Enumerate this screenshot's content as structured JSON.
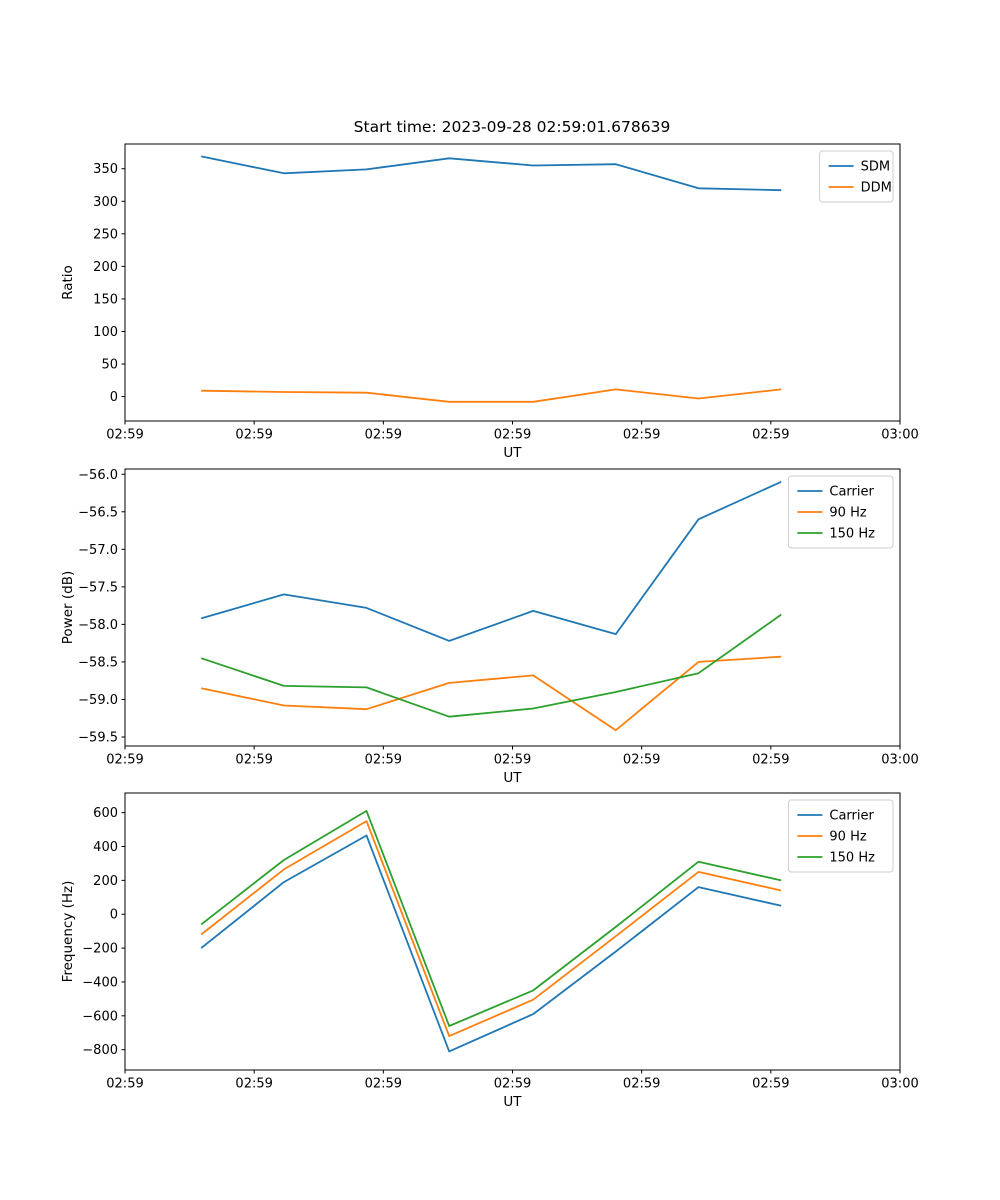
{
  "title": "Start time: 2023-09-28 02:59:01.678639",
  "chart_data": [
    {
      "id": "ratio",
      "type": "line",
      "title": "",
      "xlabel": "UT",
      "ylabel": "Ratio",
      "x": [
        5.9,
        12.3,
        18.7,
        25.1,
        31.6,
        38.0,
        44.4,
        50.8
      ],
      "x_unit": "seconds after 02:59:00 UT",
      "xlim": [
        0,
        60
      ],
      "xticks": [
        0,
        10,
        20,
        30,
        40,
        50,
        60
      ],
      "xtick_labels": [
        "02:59",
        "02:59",
        "02:59",
        "02:59",
        "02:59",
        "02:59",
        "03:00"
      ],
      "ylim": [
        -37.5,
        388
      ],
      "yticks": [
        0,
        50,
        100,
        150,
        200,
        250,
        300,
        350
      ],
      "ytick_labels": [
        "0",
        "50",
        "100",
        "150",
        "200",
        "250",
        "300",
        "350"
      ],
      "grid": false,
      "legend_position": "upper right",
      "series": [
        {
          "name": "SDM",
          "color": "#1f77b4",
          "values": [
            369,
            343,
            349,
            366,
            355,
            357,
            320,
            317
          ]
        },
        {
          "name": "DDM",
          "color": "#ff7f0e",
          "values": [
            9,
            7,
            6,
            -8,
            -8,
            11,
            -3,
            11
          ]
        }
      ]
    },
    {
      "id": "power",
      "type": "line",
      "title": "",
      "xlabel": "UT",
      "ylabel": "Power (dB)",
      "x": [
        5.9,
        12.3,
        18.7,
        25.1,
        31.6,
        38.0,
        44.4,
        50.8
      ],
      "x_unit": "seconds after 02:59:00 UT",
      "xlim": [
        0,
        60
      ],
      "xticks": [
        0,
        10,
        20,
        30,
        40,
        50,
        60
      ],
      "xtick_labels": [
        "02:59",
        "02:59",
        "02:59",
        "02:59",
        "02:59",
        "02:59",
        "03:00"
      ],
      "ylim": [
        -59.62,
        -55.93
      ],
      "yticks": [
        -59.5,
        -59.0,
        -58.5,
        -58.0,
        -57.5,
        -57.0,
        -56.5,
        -56.0
      ],
      "ytick_labels": [
        "−59.5",
        "−59.0",
        "−58.5",
        "−58.0",
        "−57.5",
        "−57.0",
        "−56.5",
        "−56.0"
      ],
      "grid": false,
      "legend_position": "upper right",
      "series": [
        {
          "name": "Carrier",
          "color": "#1f77b4",
          "values": [
            -57.92,
            -57.6,
            -57.78,
            -58.22,
            -57.82,
            -58.13,
            -56.6,
            -56.1
          ]
        },
        {
          "name": "90 Hz",
          "color": "#ff7f0e",
          "values": [
            -58.85,
            -59.08,
            -59.13,
            -58.78,
            -58.68,
            -59.41,
            -58.5,
            -58.43
          ]
        },
        {
          "name": "150 Hz",
          "color": "#2ca02c",
          "values": [
            -58.45,
            -58.82,
            -58.84,
            -59.23,
            -59.12,
            -58.9,
            -58.65,
            -57.87
          ]
        }
      ]
    },
    {
      "id": "frequency",
      "type": "line",
      "title": "",
      "xlabel": "UT",
      "ylabel": "Frequency (Hz)",
      "x": [
        5.9,
        12.3,
        18.7,
        25.1,
        31.6,
        38.0,
        44.4,
        50.8
      ],
      "x_unit": "seconds after 02:59:00 UT",
      "xlim": [
        0,
        60
      ],
      "xticks": [
        0,
        10,
        20,
        30,
        40,
        50,
        60
      ],
      "xtick_labels": [
        "02:59",
        "02:59",
        "02:59",
        "02:59",
        "02:59",
        "02:59",
        "03:00"
      ],
      "ylim": [
        -920,
        716
      ],
      "yticks": [
        -800,
        -600,
        -400,
        -200,
        0,
        200,
        400,
        600
      ],
      "ytick_labels": [
        "−800",
        "−600",
        "−400",
        "−200",
        "0",
        "200",
        "400",
        "600"
      ],
      "grid": false,
      "legend_position": "upper right",
      "series": [
        {
          "name": "Carrier",
          "color": "#1f77b4",
          "values": [
            -200,
            190,
            465,
            -810,
            -590,
            -220,
            160,
            50
          ]
        },
        {
          "name": "90 Hz",
          "color": "#ff7f0e",
          "values": [
            -120,
            265,
            550,
            -720,
            -505,
            -130,
            250,
            140
          ]
        },
        {
          "name": "150 Hz",
          "color": "#2ca02c",
          "values": [
            -60,
            320,
            610,
            -660,
            -450,
            -75,
            310,
            200
          ]
        }
      ]
    }
  ],
  "style": {
    "axis_color": "#000000",
    "background": "#ffffff",
    "legend_border": "#cccccc"
  }
}
